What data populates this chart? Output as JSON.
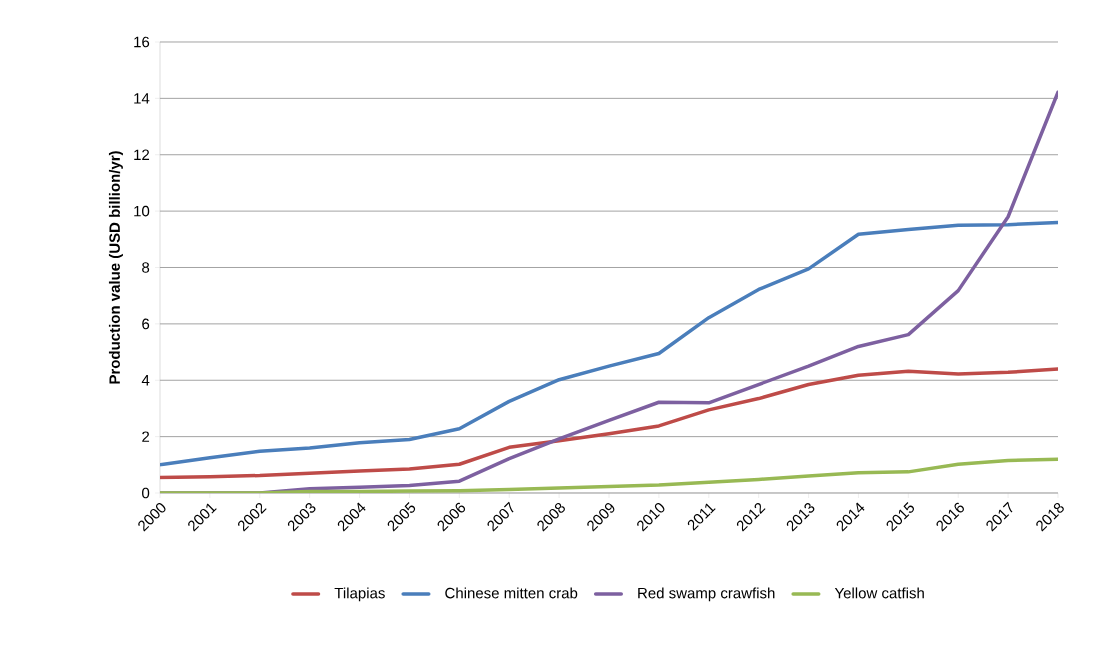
{
  "chart_data": {
    "type": "line",
    "ylabel": "Production value (USD billion/yr)",
    "categories": [
      "2000",
      "2001",
      "2002",
      "2003",
      "2004",
      "2005",
      "2006",
      "2007",
      "2008",
      "2009",
      "2010",
      "2011",
      "2012",
      "2013",
      "2014",
      "2015",
      "2016",
      "2017",
      "2018"
    ],
    "series": [
      {
        "name": "Tilapias",
        "color": "#be4b48",
        "values": [
          0.55,
          0.58,
          0.62,
          0.7,
          0.78,
          0.85,
          1.02,
          1.62,
          1.85,
          2.1,
          2.38,
          2.95,
          3.35,
          3.85,
          4.18,
          4.32,
          4.22,
          4.28,
          4.4
        ]
      },
      {
        "name": "Chinese mitten crab",
        "color": "#4a7ebb",
        "values": [
          1.0,
          1.25,
          1.48,
          1.6,
          1.78,
          1.9,
          2.28,
          3.25,
          4.02,
          4.5,
          4.95,
          6.22,
          7.22,
          7.95,
          9.18,
          9.35,
          9.5,
          9.52,
          9.6
        ]
      },
      {
        "name": "Red swamp crawfish",
        "color": "#7d60a0",
        "values": [
          0,
          0,
          0,
          0.15,
          0.2,
          0.27,
          0.42,
          1.22,
          1.92,
          2.58,
          3.22,
          3.2,
          3.85,
          4.5,
          5.2,
          5.62,
          7.18,
          9.8,
          14.22
        ]
      },
      {
        "name": "Yellow catfish",
        "color": "#98b954",
        "values": [
          0,
          0,
          0,
          0.05,
          0.05,
          0.07,
          0.08,
          0.12,
          0.18,
          0.23,
          0.28,
          0.38,
          0.48,
          0.6,
          0.72,
          0.75,
          1.02,
          1.15,
          1.2
        ]
      }
    ],
    "ylim": [
      0,
      16
    ],
    "yticks": [
      0,
      2,
      4,
      6,
      8,
      10,
      12,
      14,
      16
    ],
    "grid": "y",
    "legend": "bottom",
    "marker": "none",
    "line_style": "solid"
  }
}
